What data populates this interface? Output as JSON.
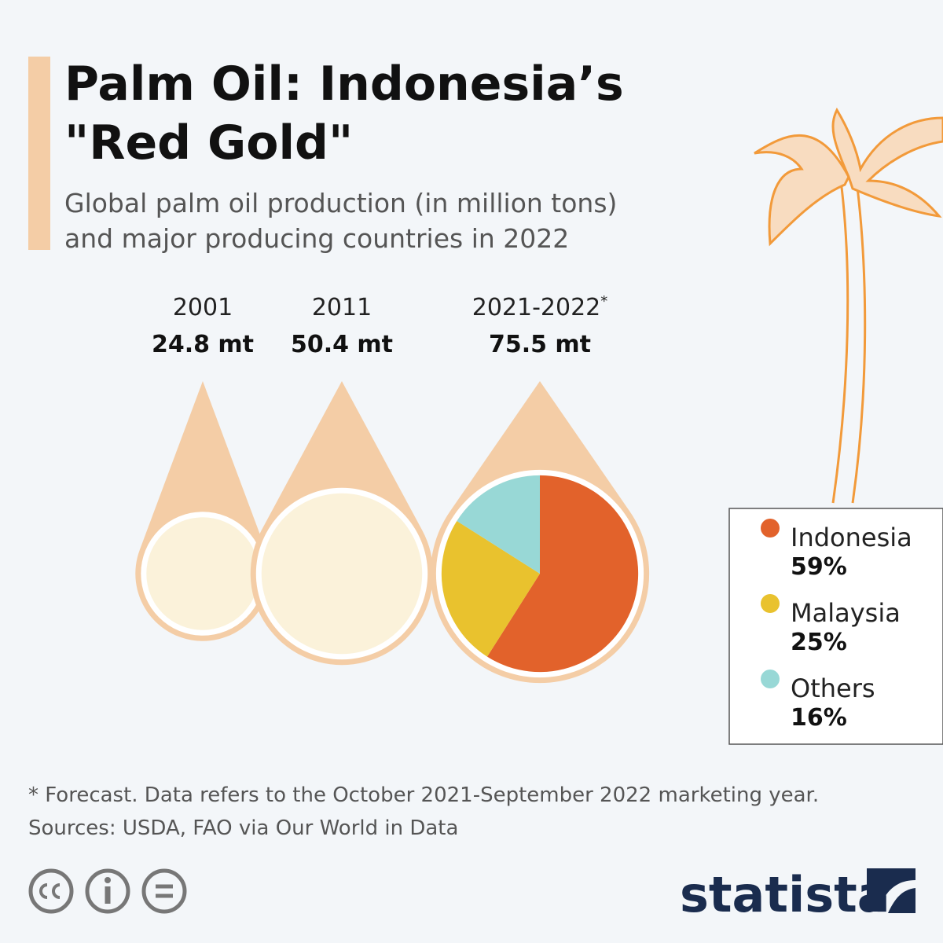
{
  "header": {
    "title_lines": [
      "Palm Oil: Indonesia’s",
      "\"Red Gold\""
    ],
    "subtitle_lines": [
      "Global palm oil production (in million tons)",
      "and major producing countries in 2022"
    ]
  },
  "chart_data": [
    {
      "type": "drop",
      "categories": [
        "2001",
        "2011",
        "2021-2022"
      ],
      "footnote_marks": [
        null,
        null,
        "*"
      ],
      "values": [
        24.8,
        50.4,
        75.5
      ],
      "value_labels": [
        "24.8 mt",
        "50.4 mt",
        "75.5 mt"
      ],
      "color": "#f4cda6"
    },
    {
      "type": "pie",
      "categories": [
        "Indonesia",
        "Malaysia",
        "Others"
      ],
      "values": [
        59,
        25,
        16
      ],
      "value_labels": [
        "59%",
        "25%",
        "16%"
      ],
      "colors": [
        "#e2622b",
        "#e9c22e",
        "#98d8d6"
      ]
    }
  ],
  "footer": {
    "note": "* Forecast. Data refers to the October 2021-September 2022 marketing year.",
    "source": "Sources: USDA, FAO via Our World in Data",
    "brand": "statista"
  }
}
